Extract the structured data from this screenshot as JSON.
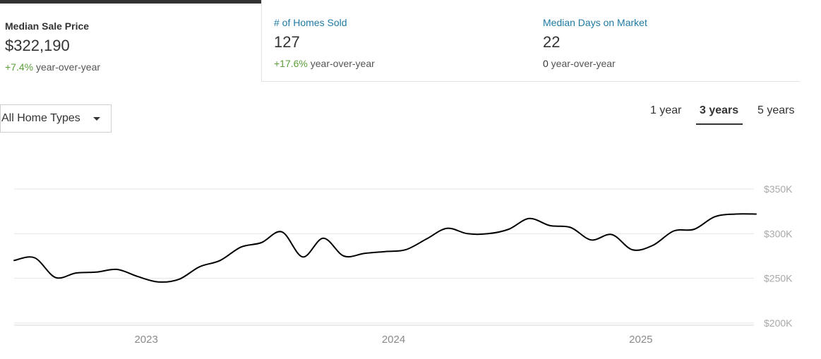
{
  "tabs": [
    {
      "label": "Median Sale Price",
      "value": "$322,190",
      "change": "+7.4%",
      "change_suffix": " year-over-year",
      "change_type": "positive",
      "active": true
    },
    {
      "label": "# of Homes Sold",
      "value": "127",
      "change": "+17.6%",
      "change_suffix": " year-over-year",
      "change_type": "positive",
      "active": false
    },
    {
      "label": "Median Days on Market",
      "value": "22",
      "change": "0",
      "change_suffix": " year-over-year",
      "change_type": "neutral",
      "active": false
    }
  ],
  "filter": {
    "selected": "All Home Types",
    "icon": "caret-down-icon"
  },
  "ranges": [
    {
      "label": "1 year",
      "active": false
    },
    {
      "label": "3 years",
      "active": true
    },
    {
      "label": "5 years",
      "active": false
    }
  ],
  "colors": {
    "line": "#000000",
    "grid": "#e6e6e6",
    "positive": "#5a9e3b",
    "link": "#1f7aa3"
  },
  "chart_data": {
    "type": "line",
    "title": "",
    "xlabel": "",
    "ylabel": "",
    "ylim": [
      200000,
      350000
    ],
    "y_ticks": [
      {
        "value": 350000,
        "label": "$350K"
      },
      {
        "value": 300000,
        "label": "$300K"
      },
      {
        "value": 250000,
        "label": "$250K"
      },
      {
        "value": 200000,
        "label": "$200K"
      }
    ],
    "x_ticks": [
      {
        "value": 2023.0,
        "label": "2023"
      },
      {
        "value": 2024.0,
        "label": "2024"
      },
      {
        "value": 2025.0,
        "label": "2025"
      }
    ],
    "xlim": [
      2022.5,
      2025.5
    ],
    "grid": true,
    "series": [
      {
        "x": [
          2022.5,
          2022.583,
          2022.667,
          2022.75,
          2022.833,
          2022.917,
          2023.0,
          2023.083,
          2023.167,
          2023.25,
          2023.333,
          2023.417,
          2023.5,
          2023.583,
          2023.667,
          2023.75,
          2023.833,
          2023.917,
          2024.0,
          2024.083,
          2024.167,
          2024.25,
          2024.333,
          2024.417,
          2024.5,
          2024.583,
          2024.667,
          2024.75,
          2024.833,
          2024.917,
          2025.0,
          2025.083,
          2025.167,
          2025.25,
          2025.333,
          2025.417,
          2025.5
        ],
        "values": [
          270000,
          273000,
          251000,
          256000,
          257000,
          260000,
          252000,
          246000,
          249000,
          263000,
          270000,
          285000,
          290000,
          302000,
          274000,
          295000,
          275000,
          278000,
          280000,
          282000,
          294000,
          306000,
          300000,
          300000,
          305000,
          317000,
          309000,
          307000,
          293000,
          299000,
          282000,
          287000,
          303000,
          305000,
          319000,
          322000,
          322000
        ]
      }
    ]
  }
}
